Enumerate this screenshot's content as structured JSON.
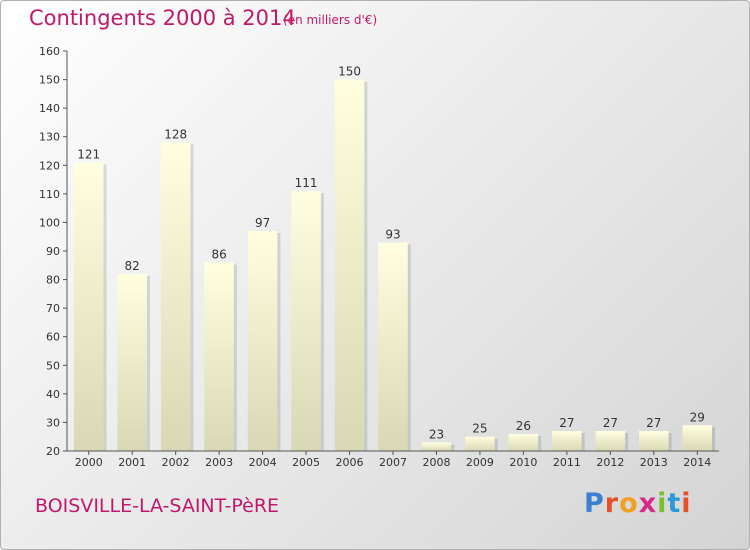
{
  "header": {
    "title": "Contingents 2000 à 2014",
    "subtitle": "(en milliers d'€)"
  },
  "footer": {
    "commune": "BOISVILLE-LA-SAINT-PèRE",
    "logo": [
      {
        "char": "P",
        "color": "#3a7fd0"
      },
      {
        "char": "r",
        "color": "#e8502a"
      },
      {
        "char": "o",
        "color": "#f0a020"
      },
      {
        "char": "x",
        "color": "#d62a8a"
      },
      {
        "char": "i",
        "color": "#7cbd2a"
      },
      {
        "char": "t",
        "color": "#2a9ad6"
      },
      {
        "char": "i",
        "color": "#e8502a"
      }
    ]
  },
  "chart_data": {
    "type": "bar",
    "title": "Contingents 2000 à 2014",
    "subtitle": "(en milliers d'€)",
    "categories": [
      "2000",
      "2001",
      "2002",
      "2003",
      "2004",
      "2005",
      "2006",
      "2007",
      "2008",
      "2009",
      "2010",
      "2011",
      "2012",
      "2013",
      "2014"
    ],
    "values": [
      121,
      82,
      128,
      86,
      97,
      111,
      150,
      93,
      23,
      25,
      26,
      27,
      27,
      27,
      29
    ],
    "ylim": [
      20,
      160
    ],
    "yticks": [
      20,
      30,
      40,
      50,
      60,
      70,
      80,
      90,
      100,
      110,
      120,
      130,
      140,
      150,
      160
    ],
    "grid": false,
    "bar_color_top": "#ffffe0",
    "bar_color_bottom": "#d8d8b4"
  }
}
